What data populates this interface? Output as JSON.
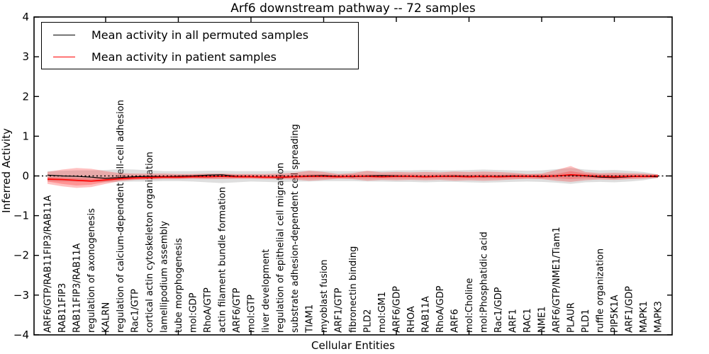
{
  "figure": {
    "title": "Arf6 downstream pathway -- 72 samples",
    "xlabel": "Cellular Entities",
    "ylabel": "Inferred Activity"
  },
  "legend": {
    "items": [
      {
        "label": "Mean activity in all permuted samples",
        "color": "#000000"
      },
      {
        "label": "Mean activity in patient samples",
        "color": "#ff0000"
      }
    ]
  },
  "chart_data": {
    "type": "line",
    "title": "Arf6 downstream pathway -- 72 samples",
    "xlabel": "Cellular Entities",
    "ylabel": "Inferred Activity",
    "ylim": [
      -4,
      4
    ],
    "yticks": [
      4,
      3,
      2,
      1,
      0,
      -1,
      -2,
      -3,
      -4
    ],
    "xticks_numeric": [
      5,
      10,
      15,
      20,
      25,
      30,
      35,
      40
    ],
    "grid": false,
    "legend_position": "upper left",
    "baseline_value": 0,
    "colors": {
      "permuted_line": "#000000",
      "patient_line": "#ff0000",
      "permuted_band": "#999999",
      "patient_band": "#ff2222"
    },
    "categories": [
      "ARF6/GTP/RAB11FIP3/RAB11A",
      "RAB11FIP3",
      "RAB11FIP3/RAB11A",
      "regulation of axonogenesis",
      "KALRN",
      "regulation of calcium-dependent cell-cell adhesion",
      "Rac1/GTP",
      "cortical actin cytoskeleton organization",
      "lamellipodium assembly",
      "tube morphogenesis",
      "mol:GDP",
      "RhoA/GTP",
      "actin filament bundle formation",
      "ARF6/GTP",
      "mol:GTP",
      "liver development",
      "regulation of epithelial cell migration",
      "substrate adhesion-dependent cell spreading",
      "TIAM1",
      "myoblast fusion",
      "ARF1/GTP",
      "fibronectin binding",
      "PLD2",
      "mol:GM1",
      "ARF6/GDP",
      "RHOA",
      "RAB11A",
      "RhoA/GDP",
      "ARF6",
      "mol:Choline",
      "mol:Phosphatidic acid",
      "Rac1/GDP",
      "ARF1",
      "RAC1",
      "NME1",
      "ARF6/GTP/NME1/Tiam1",
      "PLAUR",
      "PLD1",
      "ruffle organization",
      "PIP5K1A",
      "ARF1/GDP",
      "MAPK1",
      "MAPK3"
    ],
    "series": [
      {
        "name": "Mean activity in all permuted samples",
        "color": "#000000",
        "style": "solid",
        "values": [
          0.02,
          0.0,
          -0.01,
          -0.03,
          -0.06,
          -0.04,
          -0.02,
          -0.01,
          -0.02,
          -0.01,
          0.0,
          0.02,
          0.03,
          -0.01,
          -0.02,
          -0.03,
          -0.04,
          -0.02,
          0.0,
          0.01,
          -0.01,
          -0.02,
          0.0,
          0.01,
          0.0,
          -0.01,
          -0.02,
          -0.01,
          0.0,
          -0.01,
          -0.02,
          -0.01,
          0.0,
          -0.01,
          -0.02,
          0.0,
          0.02,
          0.0,
          -0.03,
          -0.04,
          -0.02,
          -0.01,
          -0.02
        ]
      },
      {
        "name": "Mean activity in patient samples",
        "color": "#ff0000",
        "style": "solid",
        "values": [
          -0.08,
          -0.09,
          -0.11,
          -0.13,
          -0.1,
          -0.07,
          -0.05,
          -0.04,
          -0.03,
          -0.03,
          -0.02,
          -0.02,
          -0.01,
          -0.02,
          -0.02,
          -0.03,
          -0.03,
          -0.02,
          -0.01,
          -0.01,
          -0.02,
          -0.01,
          -0.01,
          -0.02,
          -0.01,
          -0.01,
          -0.02,
          -0.01,
          -0.01,
          -0.02,
          -0.01,
          -0.02,
          -0.01,
          -0.01,
          -0.01,
          0.0,
          0.03,
          0.01,
          -0.01,
          -0.02,
          -0.01,
          -0.01,
          0.0
        ]
      }
    ],
    "bands": [
      {
        "name": "permuted-samples-range",
        "color": "#999999",
        "opacity": 0.32,
        "upper": [
          0.12,
          0.13,
          0.14,
          0.14,
          0.15,
          0.17,
          0.16,
          0.14,
          0.12,
          0.12,
          0.12,
          0.13,
          0.13,
          0.12,
          0.12,
          0.12,
          0.13,
          0.13,
          0.14,
          0.13,
          0.12,
          0.12,
          0.13,
          0.13,
          0.14,
          0.14,
          0.15,
          0.14,
          0.14,
          0.15,
          0.16,
          0.15,
          0.14,
          0.13,
          0.14,
          0.17,
          0.2,
          0.16,
          0.14,
          0.15,
          0.13,
          0.1,
          0.04
        ],
        "lower": [
          -0.13,
          -0.14,
          -0.15,
          -0.15,
          -0.16,
          -0.15,
          -0.14,
          -0.14,
          -0.13,
          -0.13,
          -0.14,
          -0.16,
          -0.18,
          -0.16,
          -0.14,
          -0.15,
          -0.16,
          -0.14,
          -0.14,
          -0.13,
          -0.13,
          -0.13,
          -0.14,
          -0.14,
          -0.15,
          -0.15,
          -0.16,
          -0.15,
          -0.15,
          -0.16,
          -0.17,
          -0.16,
          -0.15,
          -0.14,
          -0.15,
          -0.17,
          -0.2,
          -0.16,
          -0.15,
          -0.16,
          -0.14,
          -0.11,
          -0.05
        ]
      },
      {
        "name": "patient-samples-range-outer",
        "color": "#ff2222",
        "opacity": 0.28,
        "upper": [
          0.1,
          0.16,
          0.2,
          0.18,
          0.12,
          0.07,
          0.06,
          0.06,
          0.06,
          0.05,
          0.05,
          0.06,
          0.06,
          0.05,
          0.05,
          0.05,
          0.06,
          0.08,
          0.13,
          0.1,
          0.05,
          0.07,
          0.13,
          0.09,
          0.1,
          0.09,
          0.1,
          0.09,
          0.11,
          0.1,
          0.11,
          0.1,
          0.08,
          0.05,
          0.06,
          0.15,
          0.25,
          0.1,
          0.07,
          0.08,
          0.07,
          0.06,
          0.04
        ],
        "lower": [
          -0.2,
          -0.26,
          -0.3,
          -0.28,
          -0.2,
          -0.13,
          -0.1,
          -0.09,
          -0.08,
          -0.08,
          -0.07,
          -0.08,
          -0.08,
          -0.07,
          -0.07,
          -0.08,
          -0.08,
          -0.09,
          -0.12,
          -0.1,
          -0.07,
          -0.08,
          -0.12,
          -0.1,
          -0.11,
          -0.1,
          -0.11,
          -0.1,
          -0.12,
          -0.11,
          -0.12,
          -0.11,
          -0.09,
          -0.07,
          -0.08,
          -0.12,
          -0.15,
          -0.11,
          -0.09,
          -0.1,
          -0.08,
          -0.07,
          -0.05
        ]
      },
      {
        "name": "patient-samples-range-inner",
        "color": "#ff2222",
        "opacity": 0.28,
        "upper": [
          -0.03,
          -0.04,
          -0.05,
          -0.06,
          -0.04,
          -0.02,
          0.0,
          0.01,
          0.02,
          0.02,
          0.03,
          0.03,
          0.04,
          0.03,
          0.03,
          0.02,
          0.02,
          0.03,
          0.04,
          0.04,
          0.03,
          0.04,
          0.04,
          0.03,
          0.04,
          0.04,
          0.03,
          0.04,
          0.04,
          0.03,
          0.04,
          0.03,
          0.04,
          0.04,
          0.04,
          0.05,
          0.12,
          0.06,
          0.04,
          0.03,
          0.04,
          0.04,
          0.03
        ],
        "lower": [
          -0.14,
          -0.2,
          -0.24,
          -0.22,
          -0.15,
          -0.11,
          -0.09,
          -0.08,
          -0.07,
          -0.07,
          -0.06,
          -0.06,
          -0.06,
          -0.06,
          -0.06,
          -0.07,
          -0.07,
          -0.06,
          -0.06,
          -0.06,
          -0.06,
          -0.06,
          -0.06,
          -0.06,
          -0.06,
          -0.06,
          -0.06,
          -0.06,
          -0.06,
          -0.06,
          -0.06,
          -0.06,
          -0.06,
          -0.06,
          -0.06,
          -0.06,
          -0.08,
          -0.06,
          -0.06,
          -0.07,
          -0.06,
          -0.05,
          -0.04
        ]
      }
    ]
  }
}
